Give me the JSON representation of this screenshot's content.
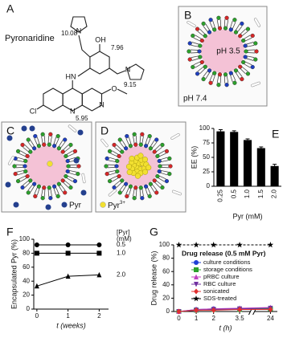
{
  "panels": {
    "A": {
      "label": "A",
      "name": "Pyronaridine",
      "pka": [
        "10.08",
        "7.96",
        "9.15",
        "5.95"
      ],
      "atoms": [
        "N",
        "N",
        "HN",
        "OH",
        "O",
        "Cl",
        "N",
        "N"
      ]
    },
    "B": {
      "label": "B",
      "inside": "pH 3.5",
      "outside": "pH 7.4"
    },
    "C": {
      "label": "C",
      "legend": "Pyr"
    },
    "D": {
      "label": "D",
      "legend": "Pyr",
      "legend_sup": "3+"
    }
  },
  "chart_data": [
    {
      "type": "bar",
      "panel": "E",
      "categories": [
        "0.25",
        "0.5",
        "1.0",
        "1.5",
        "2.0"
      ],
      "values": [
        95,
        94,
        80,
        66,
        35
      ],
      "errors": [
        3,
        2,
        2,
        2,
        3
      ],
      "color": "#000000",
      "ylim": [
        0,
        100
      ],
      "yticks": [
        0,
        25,
        50,
        75,
        100
      ],
      "ylabel": "EE (%)",
      "xlabel": "Pyr (mM)"
    },
    {
      "type": "line",
      "panel": "F",
      "x": [
        0,
        1,
        2
      ],
      "series": [
        {
          "name": "0.5",
          "color": "#000000",
          "marker": "circle",
          "values": [
            92,
            92,
            92
          ]
        },
        {
          "name": "1.0",
          "color": "#000000",
          "marker": "square",
          "values": [
            80,
            80,
            80
          ]
        },
        {
          "name": "2.0",
          "color": "#000000",
          "marker": "triangle",
          "values": [
            33,
            47,
            49
          ]
        }
      ],
      "xlim": [
        -0.1,
        2.3
      ],
      "ylim": [
        0,
        100
      ],
      "xticks": [
        0,
        1,
        2
      ],
      "yticks": [
        0,
        20,
        40,
        60,
        80,
        100
      ],
      "xlabel": "t (weeks)",
      "ylabel": "Encapsulated Pyr (%)",
      "legend_title": [
        "[Pyr]",
        "(mM)"
      ]
    },
    {
      "type": "line",
      "panel": "G",
      "title": "Drug release (0.5 mM Pyr)",
      "x": [
        0,
        1,
        2,
        3.5,
        24
      ],
      "series": [
        {
          "name": "culture conditions",
          "color": "#1f3fd6",
          "marker": "circle",
          "values": [
            0,
            3,
            4,
            4,
            5
          ]
        },
        {
          "name": "storage conditions",
          "color": "#2ca02c",
          "marker": "square",
          "values": [
            0,
            2,
            3,
            3,
            4
          ]
        },
        {
          "name": "pRBC culture",
          "color": "#c040c0",
          "marker": "triangle",
          "values": [
            0,
            3,
            4,
            5,
            6
          ]
        },
        {
          "name": "RBC culture",
          "color": "#7030a0",
          "marker": "triangle-down",
          "values": [
            0,
            2,
            3,
            4,
            5
          ]
        },
        {
          "name": "sonicated",
          "color": "#e03030",
          "marker": "diamond",
          "values": [
            0,
            2,
            2,
            3,
            3
          ]
        },
        {
          "name": "SDS-treated",
          "color": "#000000",
          "marker": "star",
          "dashed": true,
          "values": [
            100,
            100,
            100,
            100,
            100
          ]
        }
      ],
      "xlim": [
        -0.3,
        24.5
      ],
      "axis_break": [
        4,
        23
      ],
      "ylim": [
        0,
        100
      ],
      "xticks": [
        0,
        1,
        2,
        3.5,
        24
      ],
      "yticks": [
        0,
        20,
        40,
        60,
        80,
        100
      ],
      "xlabel": "t (h)",
      "ylabel": "Drug release (%)"
    }
  ]
}
